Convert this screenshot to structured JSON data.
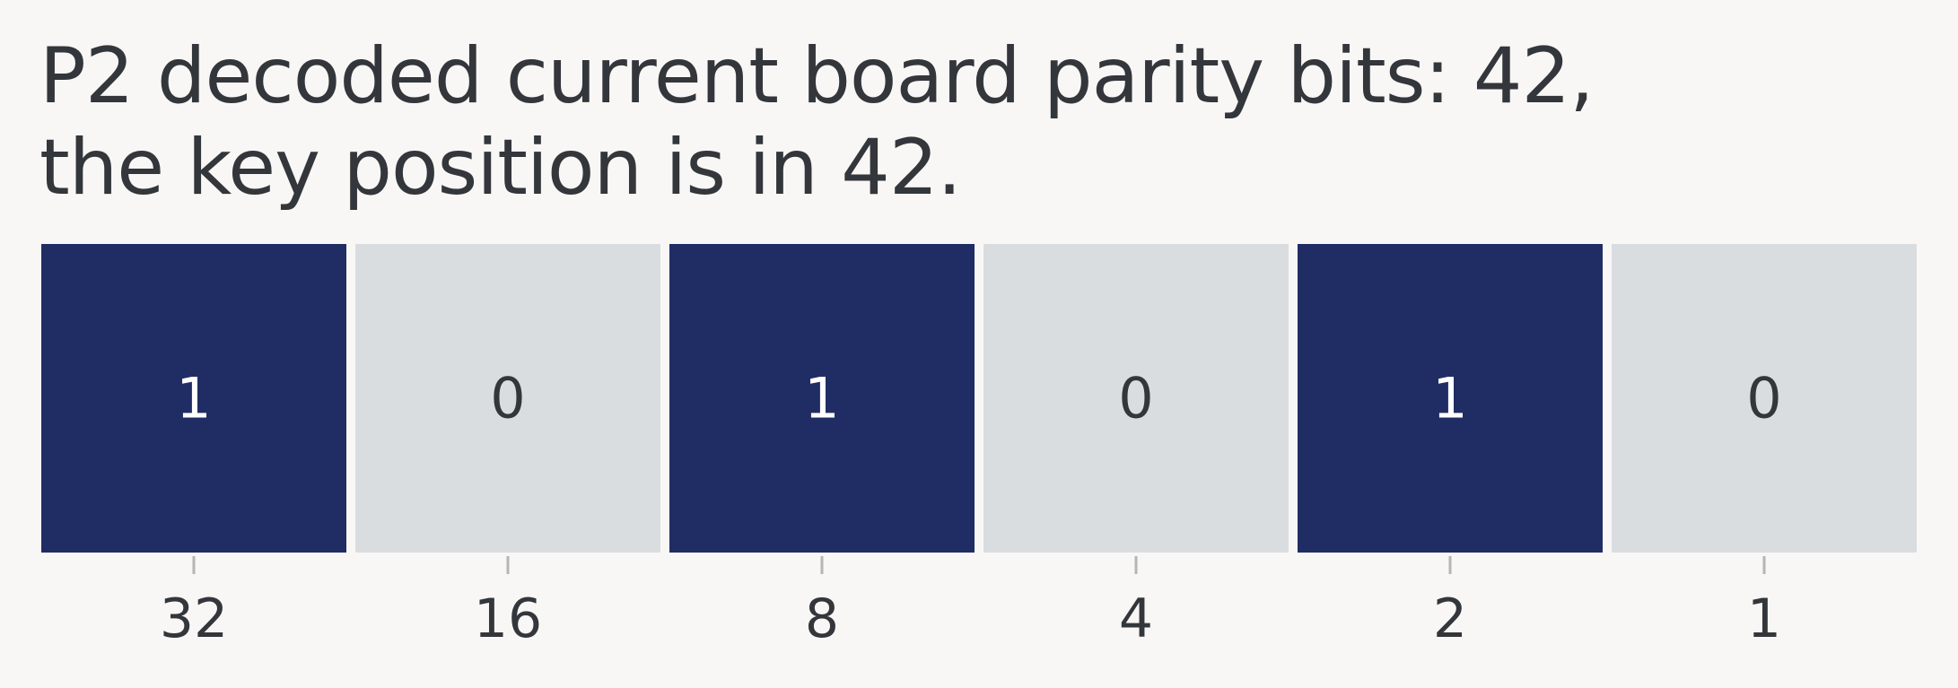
{
  "title": {
    "line1": "P2 decoded current board parity bits: 42,",
    "line2": "the key position is in 42."
  },
  "colors": {
    "background": "#f9f7f5",
    "bit_on": "#202d64",
    "bit_off": "#d9dde0",
    "text_dark": "#33363b",
    "text_light": "#ffffff",
    "tick": "#b5b5b5"
  },
  "chart_data": {
    "type": "heatmap",
    "title": "P2 decoded current board parity bits: 42, the key position is in 42.",
    "categories": [
      "32",
      "16",
      "8",
      "4",
      "2",
      "1"
    ],
    "values": [
      1,
      0,
      1,
      0,
      1,
      0
    ],
    "grid": false,
    "legend": "none"
  }
}
